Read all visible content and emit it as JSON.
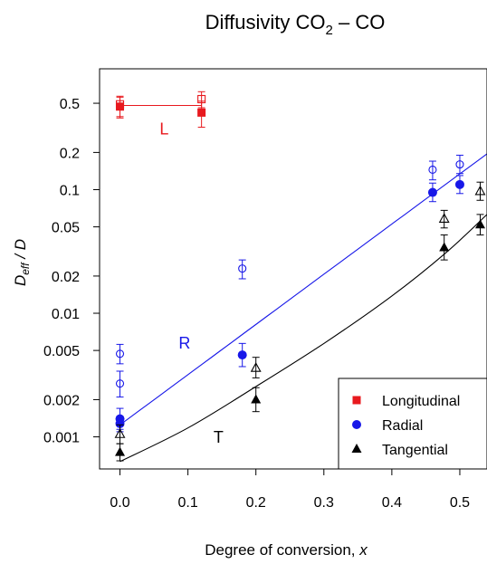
{
  "chart_data": {
    "type": "scatter",
    "title": {
      "prefix": "Diffusivity CO",
      "sub": "2",
      "suffix": " – CO"
    },
    "xlabel": {
      "text": "Degree of conversion, ",
      "var": "x"
    },
    "ylabel": {
      "main": "D",
      "sub": "eff",
      "slash": " / D"
    },
    "y_scale": "log",
    "xlim": [
      -0.03,
      0.54
    ],
    "ylim": [
      0.00055,
      0.95
    ],
    "x_ticks": [
      {
        "value": 0.0,
        "label": "0.0"
      },
      {
        "value": 0.1,
        "label": "0.1"
      },
      {
        "value": 0.2,
        "label": "0.2"
      },
      {
        "value": 0.3,
        "label": "0.3"
      },
      {
        "value": 0.4,
        "label": "0.4"
      },
      {
        "value": 0.5,
        "label": "0.5"
      }
    ],
    "y_ticks": [
      {
        "value": 0.5,
        "label": "0.5"
      },
      {
        "value": 0.2,
        "label": "0.2"
      },
      {
        "value": 0.1,
        "label": "0.1"
      },
      {
        "value": 0.05,
        "label": "0.05"
      },
      {
        "value": 0.02,
        "label": "0.02"
      },
      {
        "value": 0.01,
        "label": "0.01"
      },
      {
        "value": 0.005,
        "label": "0.005"
      },
      {
        "value": 0.002,
        "label": "0.002"
      },
      {
        "value": 0.001,
        "label": "0.001"
      }
    ],
    "grid": false,
    "legend_position": "bottom-right",
    "series": [
      {
        "name": "Longitudinal",
        "color": "#e8191e",
        "marker": "square",
        "filled": [
          {
            "x": 0.0,
            "y": 0.47,
            "lo": 0.39,
            "hi": 0.56
          },
          {
            "x": 0.12,
            "y": 0.42,
            "lo": 0.32,
            "hi": 0.52
          }
        ],
        "open": [
          {
            "x": 0.0,
            "y": 0.49,
            "lo": 0.38,
            "hi": 0.57
          },
          {
            "x": 0.12,
            "y": 0.54,
            "lo": 0.46,
            "hi": 0.62
          }
        ]
      },
      {
        "name": "Radial",
        "color": "#1717e8",
        "marker": "circle",
        "filled": [
          {
            "x": 0.0,
            "y": 0.0014,
            "lo": 0.00115,
            "hi": 0.0017
          },
          {
            "x": 0.0,
            "y": 0.00128,
            "lo": 0.0011,
            "hi": 0.00145
          },
          {
            "x": 0.18,
            "y": 0.0046,
            "lo": 0.0037,
            "hi": 0.0057
          },
          {
            "x": 0.46,
            "y": 0.095,
            "lo": 0.08,
            "hi": 0.113
          },
          {
            "x": 0.5,
            "y": 0.11,
            "lo": 0.093,
            "hi": 0.13
          }
        ],
        "open": [
          {
            "x": 0.0,
            "y": 0.0047,
            "lo": 0.0039,
            "hi": 0.0056
          },
          {
            "x": 0.0,
            "y": 0.0027,
            "lo": 0.0021,
            "hi": 0.0034
          },
          {
            "x": 0.18,
            "y": 0.023,
            "lo": 0.019,
            "hi": 0.027
          },
          {
            "x": 0.46,
            "y": 0.145,
            "lo": 0.12,
            "hi": 0.17
          },
          {
            "x": 0.5,
            "y": 0.16,
            "lo": 0.135,
            "hi": 0.19
          }
        ]
      },
      {
        "name": "Tangential",
        "color": "#000000",
        "marker": "triangle",
        "filled": [
          {
            "x": 0.0,
            "y": 0.00075,
            "lo": 0.00064,
            "hi": 0.00088
          },
          {
            "x": 0.2,
            "y": 0.002,
            "lo": 0.0016,
            "hi": 0.0025
          },
          {
            "x": 0.477,
            "y": 0.034,
            "lo": 0.027,
            "hi": 0.043
          },
          {
            "x": 0.53,
            "y": 0.052,
            "lo": 0.043,
            "hi": 0.063
          }
        ],
        "open": [
          {
            "x": 0.0,
            "y": 0.00105,
            "lo": 0.00088,
            "hi": 0.00125
          },
          {
            "x": 0.2,
            "y": 0.0036,
            "lo": 0.003,
            "hi": 0.0044
          },
          {
            "x": 0.477,
            "y": 0.058,
            "lo": 0.049,
            "hi": 0.068
          },
          {
            "x": 0.53,
            "y": 0.097,
            "lo": 0.082,
            "hi": 0.115
          }
        ]
      }
    ],
    "fits": [
      {
        "label": "L",
        "color": "#e8191e",
        "kind": "linear",
        "points": [
          {
            "x": 0.0,
            "y": 0.48
          },
          {
            "x": 0.12,
            "y": 0.48
          }
        ],
        "label_at": {
          "x": 0.065,
          "y": 0.28
        }
      },
      {
        "label": "R",
        "color": "#1717e8",
        "kind": "exponential",
        "points": [
          {
            "x": 0.0,
            "y": 0.00125
          },
          {
            "x": 0.54,
            "y": 0.195
          }
        ],
        "label_at": {
          "x": 0.095,
          "y": 0.0052
        }
      },
      {
        "label": "T",
        "color": "#000000",
        "kind": "curve",
        "points": [
          {
            "x": 0.0,
            "y": 0.00063
          },
          {
            "x": 0.1,
            "y": 0.00118
          },
          {
            "x": 0.2,
            "y": 0.00255
          },
          {
            "x": 0.3,
            "y": 0.0057
          },
          {
            "x": 0.4,
            "y": 0.0138
          },
          {
            "x": 0.48,
            "y": 0.031
          },
          {
            "x": 0.54,
            "y": 0.063
          }
        ],
        "label_at": {
          "x": 0.145,
          "y": 0.0009
        }
      }
    ]
  }
}
